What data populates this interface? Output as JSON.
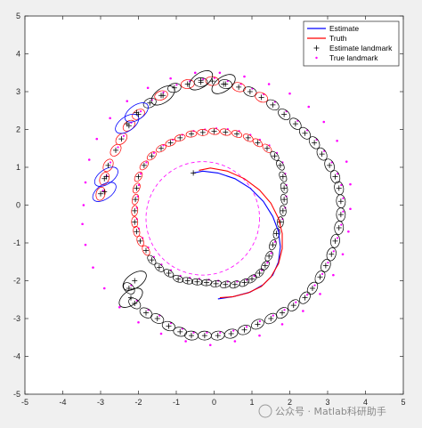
{
  "chart_data": {
    "type": "scatter",
    "xlim": [
      -5,
      5
    ],
    "ylim": [
      -5,
      5
    ],
    "x_ticks": [
      -5,
      -4,
      -3,
      -2,
      -1,
      0,
      1,
      2,
      3,
      4,
      5
    ],
    "y_ticks": [
      -5,
      -4,
      -3,
      -2,
      -1,
      0,
      1,
      2,
      3,
      4,
      5
    ],
    "grid": false,
    "legend_position": "top-right",
    "legend": [
      {
        "label": "Estimate",
        "kind": "line",
        "color": "#0000ff"
      },
      {
        "label": "Truth",
        "kind": "line",
        "color": "#ff0000"
      },
      {
        "label": "Estimate landmark",
        "kind": "plus",
        "color": "#000000"
      },
      {
        "label": "True landmark",
        "kind": "dot",
        "color": "#ff00ff"
      }
    ],
    "colors": {
      "estimate": "#0000ff",
      "truth": "#ff0000",
      "landmark_marker": "#000000",
      "true_landmark": "#ff00ff",
      "ellipse_dark": "#000000",
      "ellipse_red": "#ff0000",
      "ellipse_blue": "#0000ff"
    },
    "true_path_circle": {
      "center": [
        -0.3,
        -0.35
      ],
      "radius": 1.5
    },
    "series": [
      {
        "name": "Estimate",
        "x": [
          -0.55,
          -0.3,
          0.1,
          0.55,
          0.95,
          1.3,
          1.55,
          1.7,
          1.75,
          1.7,
          1.55,
          1.3,
          0.95,
          0.5,
          0.1
        ],
        "y": [
          0.85,
          0.9,
          0.85,
          0.7,
          0.45,
          0.1,
          -0.3,
          -0.7,
          -1.1,
          -1.5,
          -1.85,
          -2.1,
          -2.3,
          -2.42,
          -2.48
        ]
      },
      {
        "name": "Truth",
        "x": [
          -0.4,
          -0.1,
          0.35,
          0.8,
          1.2,
          1.5,
          1.7,
          1.8,
          1.8,
          1.7,
          1.5,
          1.25,
          0.9,
          0.5,
          0.15
        ],
        "y": [
          0.92,
          0.98,
          0.9,
          0.7,
          0.4,
          0.05,
          -0.35,
          -0.75,
          -1.15,
          -1.55,
          -1.9,
          -2.15,
          -2.32,
          -2.42,
          -2.45
        ]
      }
    ],
    "landmarks": {
      "inner_start": [
        -1.35,
        0.45,
        1.95,
        -1.1
      ],
      "inner_spiral": [
        [
          1.55,
          -1.05
        ],
        [
          1.45,
          -1.35
        ],
        [
          1.35,
          -1.6
        ],
        [
          1.2,
          -1.8
        ],
        [
          1.0,
          -1.95
        ],
        [
          0.8,
          -2.05
        ],
        [
          0.55,
          -2.1
        ],
        [
          0.3,
          -2.1
        ],
        [
          0.05,
          -2.08
        ],
        [
          -0.2,
          -2.05
        ],
        [
          -0.45,
          -2.03
        ],
        [
          -0.7,
          -2.0
        ],
        [
          -0.95,
          -1.95
        ],
        [
          -1.2,
          -1.8
        ],
        [
          -1.45,
          -1.65
        ],
        [
          -1.65,
          -1.45
        ],
        [
          -1.8,
          -1.2
        ],
        [
          -1.95,
          -0.95
        ],
        [
          -2.05,
          -0.7
        ],
        [
          -2.1,
          -0.45
        ],
        [
          -2.1,
          -0.15
        ],
        [
          -2.08,
          0.15
        ],
        [
          -2.05,
          0.45
        ],
        [
          -2.0,
          0.75
        ],
        [
          -1.85,
          1.05
        ],
        [
          -1.65,
          1.3
        ],
        [
          -1.4,
          1.5
        ],
        [
          -1.15,
          1.65
        ],
        [
          -0.9,
          1.78
        ],
        [
          -0.6,
          1.88
        ],
        [
          -0.3,
          1.92
        ],
        [
          0.0,
          1.95
        ],
        [
          0.3,
          1.93
        ],
        [
          0.6,
          1.88
        ],
        [
          0.9,
          1.78
        ],
        [
          1.15,
          1.65
        ],
        [
          1.4,
          1.5
        ],
        [
          1.6,
          1.3
        ],
        [
          1.75,
          1.05
        ],
        [
          1.82,
          0.75
        ],
        [
          1.85,
          0.45
        ],
        [
          1.85,
          0.15
        ],
        [
          1.82,
          -0.15
        ],
        [
          1.75,
          -0.45
        ],
        [
          1.65,
          -0.75
        ]
      ],
      "outer_spiral": [
        [
          -3.0,
          0.3
        ],
        [
          -2.9,
          0.7
        ],
        [
          -2.8,
          1.05
        ],
        [
          -2.6,
          1.45
        ],
        [
          -2.45,
          1.75
        ],
        [
          -2.25,
          2.1
        ],
        [
          -2.0,
          2.4
        ],
        [
          -1.7,
          2.7
        ],
        [
          -1.4,
          2.9
        ],
        [
          -1.05,
          3.1
        ],
        [
          -0.7,
          3.2
        ],
        [
          -0.35,
          3.25
        ],
        [
          -0.05,
          3.28
        ],
        [
          0.3,
          3.2
        ],
        [
          0.65,
          3.12
        ],
        [
          0.95,
          3.0
        ],
        [
          1.25,
          2.85
        ],
        [
          1.55,
          2.65
        ],
        [
          1.85,
          2.4
        ],
        [
          2.15,
          2.15
        ],
        [
          2.4,
          1.9
        ],
        [
          2.65,
          1.65
        ],
        [
          2.85,
          1.35
        ],
        [
          3.05,
          1.05
        ],
        [
          3.2,
          0.75
        ],
        [
          3.3,
          0.45
        ],
        [
          3.35,
          0.1
        ],
        [
          3.35,
          -0.25
        ],
        [
          3.3,
          -0.6
        ],
        [
          3.2,
          -0.95
        ],
        [
          3.1,
          -1.3
        ],
        [
          2.95,
          -1.6
        ],
        [
          2.8,
          -1.9
        ],
        [
          2.6,
          -2.2
        ],
        [
          2.4,
          -2.45
        ],
        [
          2.1,
          -2.65
        ],
        [
          1.8,
          -2.85
        ],
        [
          1.5,
          -3.0
        ],
        [
          1.15,
          -3.15
        ],
        [
          0.8,
          -3.3
        ],
        [
          0.45,
          -3.4
        ],
        [
          0.1,
          -3.45
        ],
        [
          -0.25,
          -3.45
        ],
        [
          -0.6,
          -3.45
        ],
        [
          -0.9,
          -3.35
        ],
        [
          -1.2,
          -3.2
        ],
        [
          -1.5,
          -3.0
        ],
        [
          -1.8,
          -2.85
        ],
        [
          -2.1,
          -2.6
        ],
        [
          -2.25,
          -2.2
        ]
      ],
      "true_outer_ring": [
        [
          -3.45,
          0.0
        ],
        [
          -3.4,
          0.6
        ],
        [
          -3.3,
          1.2
        ],
        [
          -3.1,
          1.75
        ],
        [
          -2.75,
          2.3
        ],
        [
          -2.3,
          2.75
        ],
        [
          -1.75,
          3.1
        ],
        [
          -1.15,
          3.35
        ],
        [
          -0.5,
          3.5
        ],
        [
          0.15,
          3.5
        ],
        [
          0.8,
          3.4
        ],
        [
          1.45,
          3.2
        ],
        [
          2.0,
          2.95
        ],
        [
          2.5,
          2.6
        ],
        [
          2.9,
          2.2
        ],
        [
          3.25,
          1.7
        ],
        [
          3.5,
          1.15
        ],
        [
          3.6,
          0.55
        ],
        [
          3.6,
          -0.1
        ],
        [
          3.55,
          -0.7
        ],
        [
          3.4,
          -1.3
        ],
        [
          3.15,
          -1.85
        ],
        [
          2.8,
          -2.35
        ],
        [
          2.35,
          -2.8
        ],
        [
          1.8,
          -3.15
        ],
        [
          1.2,
          -3.45
        ],
        [
          0.55,
          -3.6
        ],
        [
          -0.1,
          -3.7
        ],
        [
          -0.75,
          -3.6
        ],
        [
          -1.4,
          -3.4
        ],
        [
          -2.0,
          -3.1
        ],
        [
          -2.5,
          -2.7
        ],
        [
          -2.9,
          -2.2
        ],
        [
          -3.2,
          -1.65
        ],
        [
          -3.4,
          -1.05
        ],
        [
          -3.48,
          -0.5
        ]
      ]
    },
    "highlighted_ellipses": [
      {
        "center": [
          -2.9,
          0.35
        ],
        "color": "#0000ff"
      },
      {
        "center": [
          -2.85,
          0.75
        ],
        "color": "#0000ff"
      },
      {
        "center": [
          -2.3,
          2.15
        ],
        "color": "#0000ff"
      },
      {
        "center": [
          -2.05,
          2.45
        ],
        "color": "#0000ff"
      },
      {
        "center": [
          -1.35,
          2.9
        ],
        "color": "#000000"
      },
      {
        "center": [
          -0.35,
          3.3
        ],
        "color": "#000000"
      },
      {
        "center": [
          0.25,
          3.2
        ],
        "color": "#000000"
      },
      {
        "center": [
          -2.1,
          -2.0
        ],
        "color": "#000000"
      },
      {
        "center": [
          -2.2,
          -2.45
        ],
        "color": "#000000"
      }
    ]
  },
  "watermark": "公众号 · Matlab科研助手"
}
